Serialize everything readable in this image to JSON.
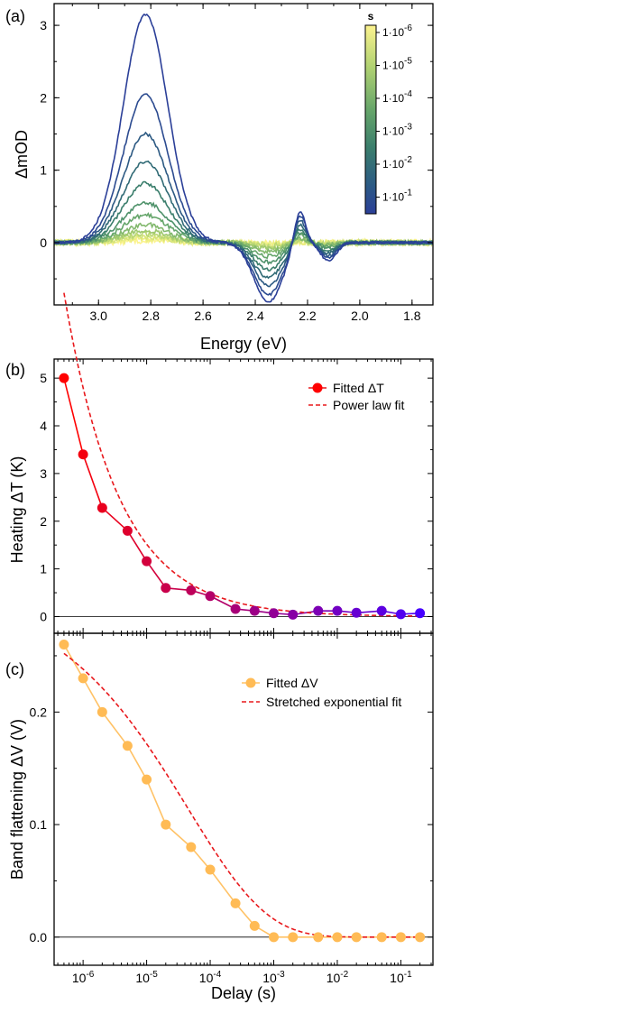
{
  "colors": {
    "spectrum_colormap": [
      "#fcf38f",
      "#e6ec7e",
      "#c3dc74",
      "#9ec86e",
      "#78b26c",
      "#549969",
      "#3b7e6c",
      "#2e6579",
      "#2c4f8d",
      "#2b3f98"
    ],
    "fitted_dT_start": "#ff0000",
    "fitted_dT_end": "#0000ff",
    "fit_line": "#e8181c",
    "fitted_dV": "#ffbb55",
    "fitted_dV_line": "#ffc266"
  },
  "chart_data": [
    {
      "panel": "(a)",
      "type": "line",
      "xlabel": "Energy (eV)",
      "ylabel": "ΔmOD",
      "x_axis_reversed": true,
      "xlim": [
        1.72,
        3.17
      ],
      "ylim": [
        -0.86,
        3.3
      ],
      "xticks": [
        "3.0",
        "2.8",
        "2.6",
        "2.4",
        "2.2",
        "2.0",
        "1.8"
      ],
      "yticks": [
        "0",
        "1",
        "2",
        "3"
      ],
      "colorbar": {
        "title": "s",
        "scale": "log",
        "ticks": [
          "1·10-6",
          "1·10-5",
          "1·10-4",
          "1·10-3",
          "1·10-2",
          "1·10-1"
        ]
      },
      "series_peak_values": [
        3.15,
        2.05,
        1.5,
        1.12,
        0.82,
        0.55,
        0.38,
        0.25,
        0.17,
        0.12,
        0.08,
        0.05,
        0.03
      ],
      "series_trough_values": [
        -0.82,
        -0.72,
        -0.6,
        -0.48,
        -0.37,
        -0.27,
        -0.19,
        -0.12,
        -0.08,
        -0.05,
        -0.03,
        -0.02,
        -0.01
      ]
    },
    {
      "panel": "(b)",
      "type": "line",
      "xlabel": "",
      "ylabel": "Heating ΔT (K)",
      "x_scale": "log",
      "ylim": [
        -0.35,
        5.4
      ],
      "yticks": [
        "0",
        "1",
        "2",
        "3",
        "4",
        "5"
      ],
      "legend_position": "top-right",
      "series": [
        {
          "name": "Fitted ΔT",
          "x": [
            5e-07,
            1e-06,
            2e-06,
            5e-06,
            1e-05,
            2e-05,
            5e-05,
            0.0001,
            0.00025,
            0.0005,
            0.001,
            0.002,
            0.005,
            0.01,
            0.02,
            0.05,
            0.1,
            0.2
          ],
          "y": [
            5.0,
            3.4,
            2.28,
            1.8,
            1.16,
            0.6,
            0.55,
            0.43,
            0.16,
            0.12,
            0.07,
            0.04,
            0.12,
            0.12,
            0.08,
            0.12,
            0.05,
            0.07
          ]
        },
        {
          "name": "Power law fit",
          "style": "dashed"
        }
      ]
    },
    {
      "panel": "(c)",
      "type": "line",
      "xlabel": "Delay (s)",
      "ylabel": "Band flattening ΔV (V)",
      "x_scale": "log",
      "xlim": [
        3.5e-07,
        0.32
      ],
      "ylim": [
        -0.025,
        0.27
      ],
      "xticks": [
        "10-6",
        "10-5",
        "10-4",
        "10-3",
        "10-2",
        "10-1"
      ],
      "yticks": [
        "0.0",
        "0.1",
        "0.2"
      ],
      "legend_position": "top-right",
      "series": [
        {
          "name": "Fitted ΔV",
          "x": [
            5e-07,
            1e-06,
            2e-06,
            5e-06,
            1e-05,
            2e-05,
            5e-05,
            0.0001,
            0.00025,
            0.0005,
            0.001,
            0.002,
            0.005,
            0.01,
            0.02,
            0.05,
            0.1,
            0.2
          ],
          "y": [
            0.26,
            0.23,
            0.2,
            0.17,
            0.14,
            0.1,
            0.08,
            0.06,
            0.03,
            0.01,
            0.0,
            0.0,
            0.0,
            0.0,
            0.0,
            0.0,
            0.0,
            0.0
          ]
        },
        {
          "name": "Stretched exponential fit",
          "style": "dashed"
        }
      ]
    }
  ]
}
